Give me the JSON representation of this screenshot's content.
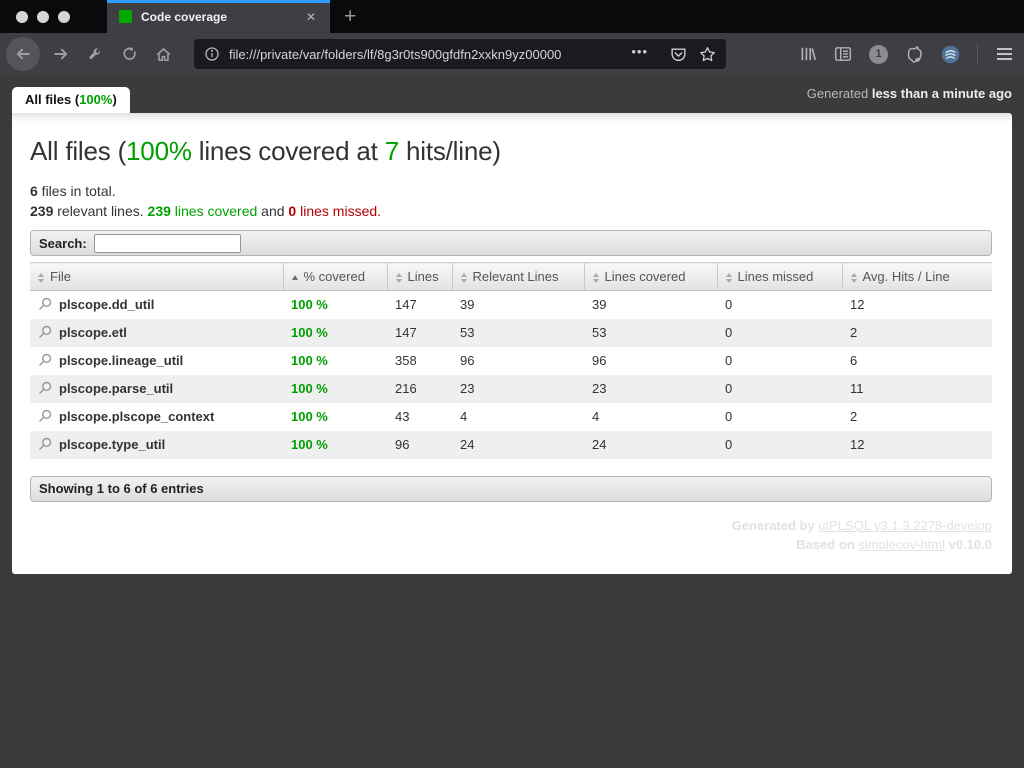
{
  "browser": {
    "tab_title": "Code coverage",
    "url": "file:///private/var/folders/lf/8g3r0ts900gfdfn2xxkn9yz00000",
    "icons": {
      "close_tab": "✕",
      "new_tab": "+",
      "more": "•••",
      "onepassword_badge": "1"
    }
  },
  "header": {
    "files_tab": {
      "prefix": "All files (",
      "percent": "100%",
      "suffix": ")"
    },
    "generated_prefix": "Generated ",
    "generated_time": "less than a minute ago"
  },
  "main": {
    "title": {
      "pre": "All files (",
      "percent": "100%",
      "mid": " lines covered at ",
      "hits": "7",
      "post": " hits/line)"
    },
    "files_total": {
      "count": "6",
      "label": " files in total."
    },
    "lines_summary": {
      "relevant_count": "239",
      "relevant_label": " relevant lines. ",
      "covered_count": "239",
      "covered_label": " lines covered",
      "and": " and ",
      "missed_count": "0",
      "missed_label": " lines missed."
    },
    "search_label": "Search:",
    "table": {
      "columns": [
        {
          "label": "File",
          "sort": "none"
        },
        {
          "label": "% covered",
          "sort": "asc"
        },
        {
          "label": "Lines",
          "sort": "none"
        },
        {
          "label": "Relevant Lines",
          "sort": "none"
        },
        {
          "label": "Lines covered",
          "sort": "none"
        },
        {
          "label": "Lines missed",
          "sort": "none"
        },
        {
          "label": "Avg. Hits / Line",
          "sort": "none"
        }
      ],
      "rows": [
        {
          "file": "plscope.dd_util",
          "covered": "100 %",
          "lines": "147",
          "relevant": "39",
          "covered_lines": "39",
          "missed": "0",
          "avg": "12"
        },
        {
          "file": "plscope.etl",
          "covered": "100 %",
          "lines": "147",
          "relevant": "53",
          "covered_lines": "53",
          "missed": "0",
          "avg": "2"
        },
        {
          "file": "plscope.lineage_util",
          "covered": "100 %",
          "lines": "358",
          "relevant": "96",
          "covered_lines": "96",
          "missed": "0",
          "avg": "6"
        },
        {
          "file": "plscope.parse_util",
          "covered": "100 %",
          "lines": "216",
          "relevant": "23",
          "covered_lines": "23",
          "missed": "0",
          "avg": "11"
        },
        {
          "file": "plscope.plscope_context",
          "covered": "100 %",
          "lines": "43",
          "relevant": "4",
          "covered_lines": "4",
          "missed": "0",
          "avg": "2"
        },
        {
          "file": "plscope.type_util",
          "covered": "100 %",
          "lines": "96",
          "relevant": "24",
          "covered_lines": "24",
          "missed": "0",
          "avg": "12"
        }
      ]
    },
    "showing": "Showing 1 to 6 of 6 entries",
    "footer": {
      "line1_prefix": "Generated by ",
      "line1_link": "utPLSQL v3.1.3.2278-develop",
      "line2_prefix": "Based on ",
      "line2_link": "simplecov-html",
      "line2_suffix": " v0.10.0"
    }
  },
  "colors": {
    "green": "#00a000",
    "red": "#b30000",
    "tab_accent_blue": "#2f9dff",
    "favicon_green": "#00a800"
  }
}
